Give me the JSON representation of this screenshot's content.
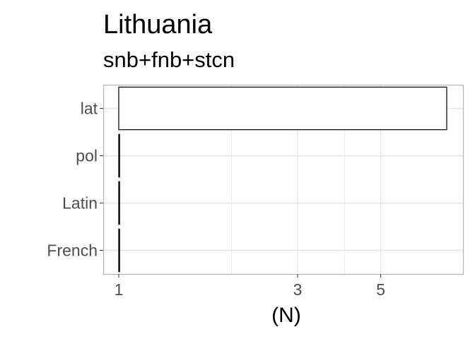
{
  "chart_data": {
    "type": "bar",
    "orientation": "horizontal",
    "title": "Lithuania",
    "subtitle": "snb+fnb+stcn",
    "xlabel": "(N)",
    "ylabel": "",
    "x_scale": "log",
    "xlim": [
      0.95,
      8.1
    ],
    "x_ticks": [
      1,
      3,
      5
    ],
    "x_minor_ticks": [
      2,
      4
    ],
    "grid": true,
    "legend": "none",
    "categories": [
      "lat",
      "pol",
      "Latin",
      "French"
    ],
    "values": [
      7.5,
      1,
      1,
      1
    ],
    "colors": {
      "bar_fill": "#ffffff",
      "bar_stroke": "#000000",
      "grid": "#e5e5e5",
      "panel_border": "#b3b3b3"
    }
  }
}
